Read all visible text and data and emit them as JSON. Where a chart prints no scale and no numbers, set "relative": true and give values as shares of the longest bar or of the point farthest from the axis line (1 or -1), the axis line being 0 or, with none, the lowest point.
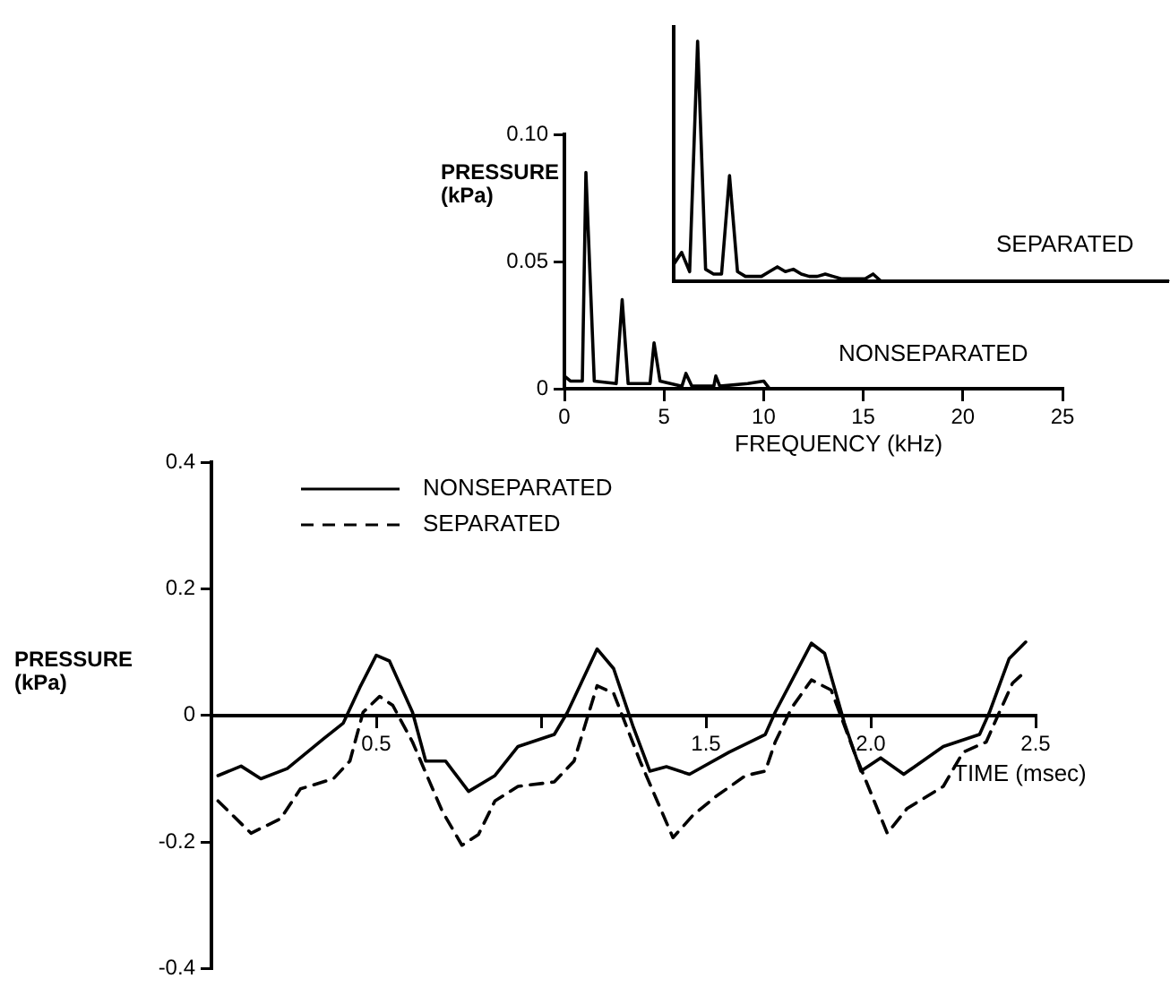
{
  "chart_data": [
    {
      "type": "line",
      "xlabel": "TIME (msec)",
      "ylabel": "PRESSURE (kPa)",
      "xlim": [
        0,
        2.5
      ],
      "ylim": [
        -0.4,
        0.4
      ],
      "xticks": [
        {
          "value": 0.5,
          "label": "0.5"
        },
        {
          "value": 1,
          "label": null
        },
        1.5,
        {
          "value": 2,
          "label": "2.0"
        },
        2.5
      ],
      "yticks": [
        -0.4,
        -0.2,
        0,
        0.2,
        0.4
      ],
      "grid": false,
      "legend": "top left",
      "marker": "none",
      "series": [
        {
          "name": "NONSEPARATED",
          "color": "#000000",
          "line_style": "solid",
          "x": [
            0.02,
            0.09,
            0.15,
            0.23,
            0.34,
            0.4,
            0.45,
            0.5,
            0.54,
            0.61,
            0.65,
            0.71,
            0.78,
            0.86,
            0.93,
            1.04,
            1.08,
            1.17,
            1.22,
            1.28,
            1.33,
            1.38,
            1.45,
            1.57,
            1.68,
            1.71,
            1.82,
            1.86,
            1.92,
            1.97,
            2.03,
            2.1,
            2.22,
            2.33,
            2.36,
            2.42,
            2.47
          ],
          "values": [
            -0.095,
            -0.08,
            -0.1,
            -0.084,
            -0.037,
            -0.012,
            0.044,
            0.095,
            0.086,
            0.005,
            -0.072,
            -0.072,
            -0.12,
            -0.095,
            -0.049,
            -0.03,
            0.005,
            0.105,
            0.074,
            -0.019,
            -0.088,
            -0.081,
            -0.093,
            -0.058,
            -0.03,
            0.005,
            0.114,
            0.098,
            -0.012,
            -0.088,
            -0.067,
            -0.093,
            -0.049,
            -0.03,
            0.005,
            0.09,
            0.116
          ]
        },
        {
          "name": "SEPARATED",
          "color": "#000000",
          "line_style": "dashed",
          "x": [
            0.02,
            0.12,
            0.21,
            0.27,
            0.37,
            0.42,
            0.46,
            0.51,
            0.55,
            0.61,
            0.7,
            0.76,
            0.81,
            0.86,
            0.93,
            1.04,
            1.1,
            1.17,
            1.22,
            1.3,
            1.4,
            1.46,
            1.53,
            1.62,
            1.68,
            1.71,
            1.76,
            1.82,
            1.88,
            1.95,
            2.05,
            2.11,
            2.22,
            2.28,
            2.35,
            2.39,
            2.43,
            2.47
          ],
          "values": [
            -0.135,
            -0.186,
            -0.163,
            -0.116,
            -0.1,
            -0.072,
            0.005,
            0.03,
            0.016,
            -0.042,
            -0.151,
            -0.205,
            -0.188,
            -0.135,
            -0.112,
            -0.105,
            -0.072,
            0.047,
            0.035,
            -0.072,
            -0.193,
            -0.158,
            -0.128,
            -0.095,
            -0.088,
            -0.042,
            0.012,
            0.056,
            0.04,
            -0.058,
            -0.186,
            -0.147,
            -0.112,
            -0.058,
            -0.042,
            0.005,
            0.051,
            0.07
          ]
        }
      ]
    },
    {
      "type": "line",
      "xlabel": "FREQUENCY (kHz)",
      "ylabel": "PRESSURE (kPa)",
      "xlim": [
        0,
        25
      ],
      "ylim": [
        0,
        0.1
      ],
      "xticks": [
        0,
        5,
        10,
        15,
        20,
        25
      ],
      "yticks": [
        0,
        0.05,
        {
          "value": 0.1,
          "label": "0.10"
        }
      ],
      "grid": false,
      "legend": false,
      "marker": "none",
      "series": [
        {
          "name": "NONSEPARATED",
          "color": "#000000",
          "x": [
            0,
            0.3,
            0.9,
            1.08,
            1.5,
            2.6,
            2.9,
            3.2,
            4.3,
            4.5,
            4.8,
            5.9,
            6.1,
            6.4,
            7.5,
            7.6,
            7.8,
            9.2,
            10,
            10.3,
            11.9
          ],
          "values": [
            0.005,
            0.003,
            0.003,
            0.085,
            0.003,
            0.002,
            0.035,
            0.002,
            0.002,
            0.018,
            0.003,
            0.001,
            0.006,
            0.001,
            0.001,
            0.005,
            0.001,
            0.002,
            0.003,
            0,
            0
          ]
        }
      ]
    },
    {
      "type": "line",
      "relative": true,
      "categories": [
        null,
        null,
        null,
        null,
        null,
        null,
        null,
        null,
        null,
        null,
        null,
        null,
        null,
        null,
        null,
        null,
        null,
        null,
        null,
        null,
        null,
        null,
        null,
        null,
        null,
        null,
        null,
        null,
        null,
        null,
        null,
        null,
        null,
        null,
        null,
        null,
        null,
        null,
        null,
        null,
        null,
        null,
        null,
        null,
        null,
        null,
        null,
        null,
        null,
        null,
        null,
        null,
        null,
        null,
        null,
        null,
        null,
        null,
        null,
        null,
        null,
        null,
        null
      ],
      "marker": "none",
      "series": [
        {
          "name": "SEPARATED",
          "color": "#000000",
          "values": [
            0.07,
            0.12,
            0.04,
            1,
            0.05,
            0.03,
            0.03,
            0.44,
            0.04,
            0.02,
            0.02,
            0.02,
            0.04,
            0.06,
            0.04,
            0.05,
            0.03,
            0.02,
            0.02,
            0.03,
            0.02,
            0.01,
            0.01,
            0.01,
            0.01,
            0.03,
            0,
            0,
            0,
            0,
            0,
            0,
            0,
            0,
            0,
            0,
            0,
            0,
            0,
            0,
            0,
            0,
            0,
            0,
            0,
            0,
            0,
            0,
            0,
            0,
            0,
            0,
            0,
            0,
            0,
            0,
            0,
            0,
            0,
            0,
            0,
            0,
            0
          ]
        }
      ]
    }
  ]
}
